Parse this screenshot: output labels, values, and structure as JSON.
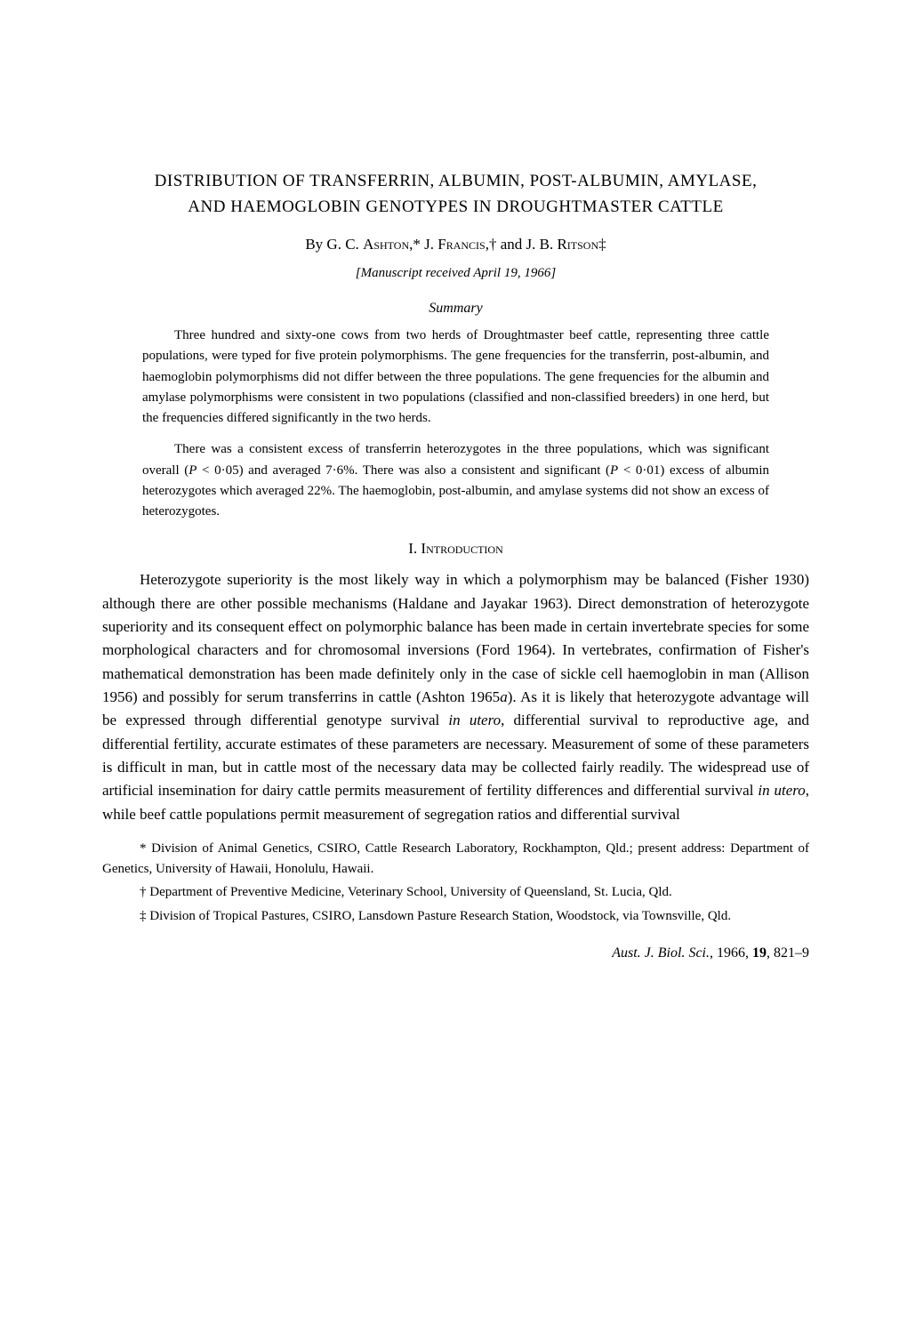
{
  "title_line1": "DISTRIBUTION OF TRANSFERRIN, ALBUMIN, POST-ALBUMIN, AMYLASE,",
  "title_line2": "AND HAEMOGLOBIN GENOTYPES IN DROUGHTMASTER CATTLE",
  "authors_prefix": "By G. C. ",
  "author1": "Ashton",
  "author1_mark": "*",
  "authors_sep1": " J. ",
  "author2": "Francis",
  "author2_mark": "†",
  "authors_sep2": " and J. B. ",
  "author3": "Ritson",
  "author3_mark": "‡",
  "received": "[Manuscript received April 19, 1966]",
  "summary_heading": "Summary",
  "summary_p1": "Three hundred and sixty-one cows from two herds of Droughtmaster beef cattle, representing three cattle populations, were typed for five protein polymorphisms. The gene frequencies for the transferrin, post-albumin, and haemoglobin polymorphisms did not differ between the three populations. The gene frequencies for the albumin and amylase polymorphisms were consistent in two populations (classified and non-classified breeders) in one herd, but the frequencies differed significantly in the two herds.",
  "summary_p2_a": "There was a consistent excess of transferrin heterozygotes in the three populations, which was significant overall (",
  "summary_p2_p1": "P",
  "summary_p2_b": " < 0·05) and averaged 7·6%. There was also a consistent and significant (",
  "summary_p2_p2": "P",
  "summary_p2_c": " < 0·01) excess of albumin heterozygotes which averaged 22%. The haemoglobin, post-albumin, and amylase systems did not show an excess of heterozygotes.",
  "section1_num": "I. ",
  "section1_title": "Introduction",
  "body_p1_a": "Heterozygote superiority is the most likely way in which a polymorphism may be balanced (Fisher 1930) although there are other possible mechanisms (Haldane and Jayakar 1963). Direct demonstration of heterozygote superiority and its consequent effect on polymorphic balance has been made in certain invertebrate species for some morphological characters and for chromosomal inversions (Ford 1964). In vertebrates, confirmation of Fisher's mathematical demonstration has been made definitely only in the case of sickle cell haemoglobin in man (Allison 1956) and possibly for serum transferrins in cattle (Ashton 1965",
  "body_p1_a2": "a",
  "body_p1_b": "). As it is likely that heterozygote advantage will be expressed through differential genotype survival ",
  "body_p1_iu": "in utero",
  "body_p1_c": ", differential survival to reproductive age, and differential fertility, accurate estimates of these parameters are necessary. Measurement of some of these parameters is difficult in man, but in cattle most of the necessary data may be collected fairly readily. The widespread use of artificial insemination for dairy cattle permits measurement of fertility differences and differential survival ",
  "body_p1_iu2": "in utero",
  "body_p1_d": ", while beef cattle populations permit measurement of segregation ratios and differential survival",
  "footnote1": "* Division of Animal Genetics, CSIRO, Cattle Research Laboratory, Rockhampton, Qld.; present address: Department of Genetics, University of Hawaii, Honolulu, Hawaii.",
  "footnote2": "† Department of Preventive Medicine, Veterinary School, University of Queensland, St. Lucia, Qld.",
  "footnote3": "‡ Division of Tropical Pastures, CSIRO, Lansdown Pasture Research Station, Woodstock, via Townsville, Qld.",
  "citation_journal": "Aust. J. Biol. Sci.",
  "citation_rest": ", 1966, ",
  "citation_vol": "19",
  "citation_pages": ", 821–9"
}
